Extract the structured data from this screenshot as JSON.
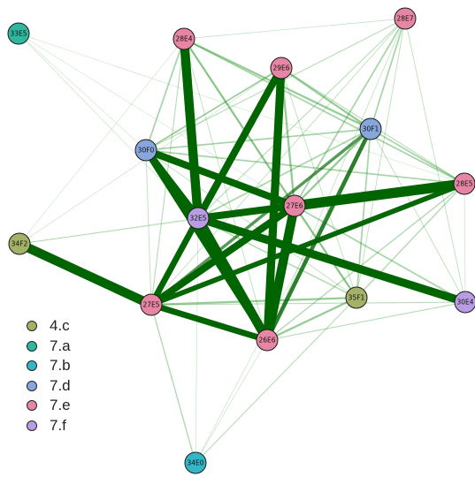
{
  "groups": [
    {
      "id": "4.c",
      "label": "4.c",
      "color": "#a3b267"
    },
    {
      "id": "7.a",
      "label": "7.a",
      "color": "#2fb8a0"
    },
    {
      "id": "7.b",
      "label": "7.b",
      "color": "#33b6c8"
    },
    {
      "id": "7.d",
      "label": "7.d",
      "color": "#86a6dc"
    },
    {
      "id": "7.e",
      "label": "7.e",
      "color": "#e686a4"
    },
    {
      "id": "7.f",
      "label": "7.f",
      "color": "#b99de2"
    }
  ],
  "nodes": [
    {
      "id": "33E5",
      "group": "7.a"
    },
    {
      "id": "28E4",
      "group": "7.e"
    },
    {
      "id": "28E7",
      "group": "7.e"
    },
    {
      "id": "29E6",
      "group": "7.e"
    },
    {
      "id": "30F1",
      "group": "7.d"
    },
    {
      "id": "30F0",
      "group": "7.d"
    },
    {
      "id": "28E5",
      "group": "7.e"
    },
    {
      "id": "27E6",
      "group": "7.e"
    },
    {
      "id": "32E5",
      "group": "7.f"
    },
    {
      "id": "34F2",
      "group": "4.c"
    },
    {
      "id": "35F1",
      "group": "4.c"
    },
    {
      "id": "30E4",
      "group": "7.f"
    },
    {
      "id": "27E5",
      "group": "7.e"
    },
    {
      "id": "26E6",
      "group": "7.e"
    },
    {
      "id": "34E0",
      "group": "7.b"
    }
  ],
  "edges": [
    {
      "source": "28E4",
      "target": "32E5",
      "weight": 9
    },
    {
      "source": "29E6",
      "target": "32E5",
      "weight": 7
    },
    {
      "source": "29E6",
      "target": "26E6",
      "weight": 8
    },
    {
      "source": "30F0",
      "target": "32E5",
      "weight": 7
    },
    {
      "source": "30F0",
      "target": "27E6",
      "weight": 7
    },
    {
      "source": "30F0",
      "target": "26E6",
      "weight": 6
    },
    {
      "source": "32E5",
      "target": "27E6",
      "weight": 7
    },
    {
      "source": "32E5",
      "target": "30E4",
      "weight": 8
    },
    {
      "source": "32E5",
      "target": "27E5",
      "weight": 6
    },
    {
      "source": "32E5",
      "target": "26E6",
      "weight": 9
    },
    {
      "source": "27E6",
      "target": "28E5",
      "weight": 10
    },
    {
      "source": "27E6",
      "target": "27E5",
      "weight": 7
    },
    {
      "source": "27E6",
      "target": "26E6",
      "weight": 9
    },
    {
      "source": "34F2",
      "target": "27E5",
      "weight": 9
    },
    {
      "source": "27E5",
      "target": "26E6",
      "weight": 6
    },
    {
      "source": "28E5",
      "target": "27E5",
      "weight": 5
    },
    {
      "source": "30F1",
      "target": "26E6",
      "weight": 4
    },
    {
      "source": "30F1",
      "target": "27E5",
      "weight": 3
    },
    {
      "source": "28E4",
      "target": "30F1",
      "weight": 2
    },
    {
      "source": "29E6",
      "target": "30F1",
      "weight": 2
    },
    {
      "source": "28E4",
      "target": "27E6",
      "weight": 2
    },
    {
      "source": "29E6",
      "target": "27E6",
      "weight": 2
    },
    {
      "source": "30F1",
      "target": "27E6",
      "weight": 2
    },
    {
      "source": "27E6",
      "target": "35F1",
      "weight": 2
    },
    {
      "source": "35F1",
      "target": "27E5",
      "weight": 2
    },
    {
      "source": "35F1",
      "target": "26E6",
      "weight": 2
    },
    {
      "source": "28E7",
      "target": "30F1",
      "weight": 1.5
    },
    {
      "source": "28E7",
      "target": "27E6",
      "weight": 1.5
    },
    {
      "source": "28E7",
      "target": "32E5",
      "weight": 1
    },
    {
      "source": "28E7",
      "target": "30F0",
      "weight": 1
    },
    {
      "source": "28E4",
      "target": "30F0",
      "weight": 1.5
    },
    {
      "source": "28E4",
      "target": "27E5",
      "weight": 1
    },
    {
      "source": "28E4",
      "target": "28E5",
      "weight": 1.5
    },
    {
      "source": "29E6",
      "target": "30F0",
      "weight": 1.5
    },
    {
      "source": "29E6",
      "target": "28E5",
      "weight": 1
    },
    {
      "source": "30F0",
      "target": "30F1",
      "weight": 1.5
    },
    {
      "source": "30F0",
      "target": "28E5",
      "weight": 1.5
    },
    {
      "source": "30F1",
      "target": "32E5",
      "weight": 1.5
    },
    {
      "source": "30F1",
      "target": "28E5",
      "weight": 1.5
    },
    {
      "source": "30F1",
      "target": "35F1",
      "weight": 1.5
    },
    {
      "source": "28E5",
      "target": "32E5",
      "weight": 1.5
    },
    {
      "source": "28E5",
      "target": "35F1",
      "weight": 1.2
    },
    {
      "source": "28E5",
      "target": "26E6",
      "weight": 1.2
    },
    {
      "source": "27E6",
      "target": "30E4",
      "weight": 1.5
    },
    {
      "source": "32E5",
      "target": "35F1",
      "weight": 1.2
    },
    {
      "source": "35F1",
      "target": "34E0",
      "weight": 1
    },
    {
      "source": "27E5",
      "target": "34E0",
      "weight": 1.2
    },
    {
      "source": "27E5",
      "target": "30E4",
      "weight": 1
    },
    {
      "source": "26E6",
      "target": "30E4",
      "weight": 1
    },
    {
      "source": "34F2",
      "target": "32E5",
      "weight": 0.8
    },
    {
      "source": "34F2",
      "target": "29E6",
      "weight": 0.6
    },
    {
      "source": "33E5",
      "target": "32E5",
      "weight": 0.6
    },
    {
      "source": "33E5",
      "target": "28E5",
      "weight": 0.5
    },
    {
      "source": "28E7",
      "target": "35F1",
      "weight": 0.8
    },
    {
      "source": "28E7",
      "target": "30E4",
      "weight": 0.8
    },
    {
      "source": "28E7",
      "target": "27E5",
      "weight": 0.8
    },
    {
      "source": "28E7",
      "target": "26E6",
      "weight": 0.7
    },
    {
      "source": "28E7",
      "target": "28E4",
      "weight": 0.7
    },
    {
      "source": "30F0",
      "target": "35F1",
      "weight": 0.8
    },
    {
      "source": "30F0",
      "target": "27E5",
      "weight": 0.8
    },
    {
      "source": "30F0",
      "target": "29E6",
      "weight": 0.6
    },
    {
      "source": "34E0",
      "target": "30F1",
      "weight": 0.6
    },
    {
      "source": "34E0",
      "target": "32E5",
      "weight": 0.6
    },
    {
      "source": "34E0",
      "target": "26E6",
      "weight": 0.6
    },
    {
      "source": "29E6",
      "target": "35F1",
      "weight": 0.8
    },
    {
      "source": "29E6",
      "target": "27E5",
      "weight": 0.8
    },
    {
      "source": "28E4",
      "target": "26E6",
      "weight": 0.8
    },
    {
      "source": "28E4",
      "target": "35F1",
      "weight": 0.7
    },
    {
      "source": "30F1",
      "target": "30E4",
      "weight": 0.8
    },
    {
      "source": "28E5",
      "target": "30E4",
      "weight": 0.6
    },
    {
      "source": "34F2",
      "target": "28E4",
      "weight": 0.5
    },
    {
      "source": "34F2",
      "target": "27E6",
      "weight": 0.5
    },
    {
      "source": "33E5",
      "target": "30F0",
      "weight": 0.4
    },
    {
      "source": "33E5",
      "target": "27E6",
      "weight": 0.4
    }
  ]
}
